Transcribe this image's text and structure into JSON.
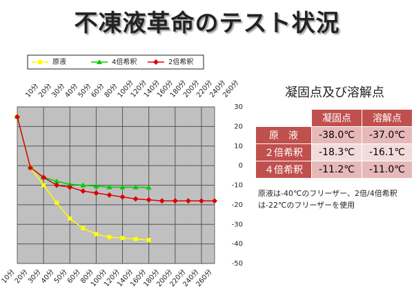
{
  "chart_data": {
    "type": "line",
    "title": "不凍液革命のテスト状況",
    "categories": [
      "10分",
      "20分",
      "30分",
      "40分",
      "50分",
      "60分",
      "80分",
      "100分",
      "120分",
      "140分",
      "160分",
      "180分",
      "200分",
      "220分",
      "240分",
      "260分"
    ],
    "series": [
      {
        "name": "原液",
        "color": "#ffff00",
        "marker": "square",
        "values": [
          25,
          -1,
          -10,
          -19,
          -27,
          -32,
          -35,
          -36.5,
          -37,
          -37.5,
          -38,
          null,
          null,
          null,
          null,
          null
        ]
      },
      {
        "name": "4倍希釈",
        "color": "#00cc00",
        "marker": "triangle",
        "values": [
          25,
          -1,
          -6,
          -8,
          -9.5,
          -10,
          -10.5,
          -11,
          -11,
          -11,
          -11.2,
          null,
          null,
          null,
          null,
          null
        ]
      },
      {
        "name": "2倍希釈",
        "color": "#dd0000",
        "marker": "diamond",
        "values": [
          25,
          -1,
          -6,
          -10,
          -11,
          -13,
          -14,
          -15,
          -16,
          -17,
          -17.5,
          -18,
          -18,
          -18,
          -18,
          -18
        ]
      }
    ],
    "ylim": [
      -50,
      30
    ],
    "yticks": [
      30,
      20,
      10,
      0,
      -10,
      -20,
      -30,
      -40,
      -50
    ],
    "grid": true,
    "legend": "top"
  },
  "table": {
    "title": "凝固点及び溶解点",
    "header": [
      "凝固点",
      "溶解点"
    ],
    "rows": [
      [
        "原　液",
        "-38.0℃",
        "-37.0℃"
      ],
      [
        "２倍希釈",
        "-18.3℃",
        "-16.1℃"
      ],
      [
        "４倍希釈",
        "-11.2℃",
        "-11.0℃"
      ]
    ],
    "note": "原液は-40℃のフリーザー、2倍/4倍希釈は-22℃のフリーザーを使用"
  }
}
